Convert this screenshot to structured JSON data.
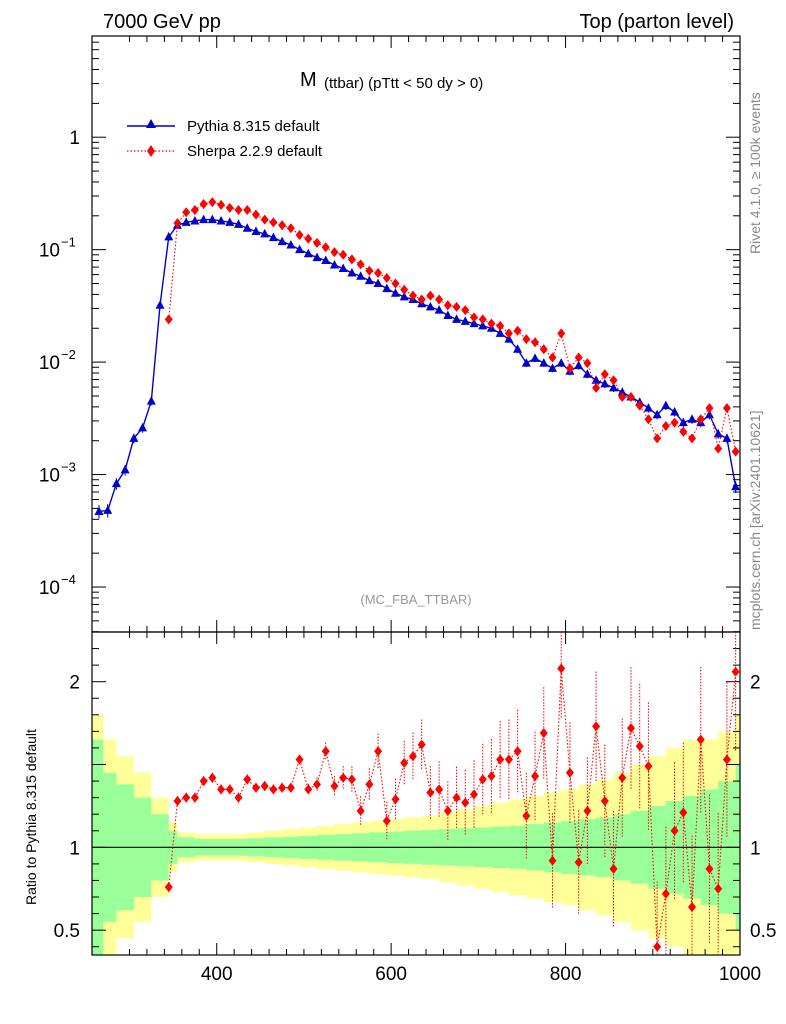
{
  "header": {
    "energy": "7000 GeV pp",
    "process": "Top (parton level)"
  },
  "plot_title": {
    "main": "M",
    "detail": "(ttbar) (pTtt < 50 dy > 0)"
  },
  "legend": [
    {
      "label": "Pythia 8.315 default",
      "color": "#0000cc",
      "marker": "triangle",
      "style": "solid"
    },
    {
      "label": "Sherpa 2.2.9 default",
      "color": "#ff0000",
      "marker": "diamond",
      "style": "dotted"
    }
  ],
  "analysis_tag": "(MC_FBA_TTBAR)",
  "side_text": {
    "rivet": "Rivet 4.1.0, ≥ 100k events",
    "mcplots": "mcplots.cern.ch [arXiv:2401.10621]"
  },
  "ratio_ylabel": "Ratio to Pythia 8.315 default",
  "colors": {
    "pythia": "#0000cc",
    "sherpa": "#ff0000",
    "band_inner": "#99ff99",
    "band_outer": "#ffff99"
  },
  "chart_data": {
    "type": "line",
    "xlim": [
      257,
      1000
    ],
    "x_ticks": [
      400,
      600,
      800,
      1000
    ],
    "main_ylim_log10": [
      -4.4,
      0.9
    ],
    "main_y_ticks": [
      {
        "value": 1,
        "base": "1",
        "exp": ""
      },
      {
        "value": 0.1,
        "base": "10",
        "exp": "−1"
      },
      {
        "value": 0.01,
        "base": "10",
        "exp": "−2"
      },
      {
        "value": 0.001,
        "base": "10",
        "exp": "−3"
      },
      {
        "value": 0.0001,
        "base": "10",
        "exp": "−4"
      }
    ],
    "ratio_ylim": [
      0.35,
      2.3
    ],
    "ratio_y_ticks": [
      0.5,
      1,
      2
    ],
    "series": [
      {
        "name": "Pythia 8.315 default",
        "x": [
          265,
          275,
          285,
          295,
          305,
          315,
          325,
          335,
          345,
          355,
          365,
          375,
          385,
          395,
          405,
          415,
          425,
          435,
          445,
          455,
          465,
          475,
          485,
          495,
          505,
          515,
          525,
          535,
          545,
          555,
          565,
          575,
          585,
          595,
          605,
          615,
          625,
          635,
          645,
          655,
          665,
          675,
          685,
          695,
          705,
          715,
          725,
          735,
          745,
          755,
          765,
          775,
          785,
          795,
          805,
          815,
          825,
          835,
          845,
          855,
          865,
          875,
          885,
          895,
          905,
          915,
          925,
          935,
          945,
          955,
          965,
          975,
          985,
          995
        ],
        "y": [
          0.00047,
          0.00048,
          0.00083,
          0.0011,
          0.0021,
          0.0026,
          0.0045,
          0.032,
          0.13,
          0.165,
          0.175,
          0.18,
          0.185,
          0.185,
          0.18,
          0.175,
          0.168,
          0.155,
          0.145,
          0.138,
          0.128,
          0.118,
          0.11,
          0.1,
          0.092,
          0.085,
          0.08,
          0.073,
          0.068,
          0.062,
          0.058,
          0.053,
          0.05,
          0.045,
          0.041,
          0.038,
          0.036,
          0.033,
          0.031,
          0.029,
          0.026,
          0.024,
          0.023,
          0.022,
          0.021,
          0.02,
          0.018,
          0.016,
          0.013,
          0.0098,
          0.0108,
          0.0098,
          0.0088,
          0.0098,
          0.0083,
          0.0093,
          0.0078,
          0.0069,
          0.0064,
          0.0059,
          0.0054,
          0.0049,
          0.0044,
          0.0039,
          0.0034,
          0.0041,
          0.0036,
          0.0029,
          0.0031,
          0.0029,
          0.0034,
          0.0023,
          0.0021,
          0.00078
        ]
      },
      {
        "name": "Sherpa 2.2.9 default",
        "x": [
          345,
          355,
          365,
          375,
          385,
          395,
          405,
          415,
          425,
          435,
          445,
          455,
          465,
          475,
          485,
          495,
          505,
          515,
          525,
          535,
          545,
          555,
          565,
          575,
          585,
          595,
          605,
          615,
          625,
          635,
          645,
          655,
          665,
          675,
          685,
          695,
          705,
          715,
          725,
          735,
          745,
          755,
          765,
          775,
          785,
          795,
          805,
          815,
          825,
          835,
          845,
          855,
          865,
          875,
          885,
          895,
          905,
          915,
          925,
          935,
          945,
          955,
          965,
          975,
          985,
          995
        ],
        "y": [
          0.024,
          0.172,
          0.215,
          0.225,
          0.255,
          0.265,
          0.25,
          0.235,
          0.225,
          0.225,
          0.205,
          0.185,
          0.175,
          0.165,
          0.155,
          0.135,
          0.125,
          0.115,
          0.105,
          0.095,
          0.09,
          0.082,
          0.074,
          0.065,
          0.062,
          0.056,
          0.05,
          0.044,
          0.039,
          0.036,
          0.039,
          0.036,
          0.032,
          0.031,
          0.029,
          0.025,
          0.024,
          0.022,
          0.021,
          0.018,
          0.019,
          0.016,
          0.015,
          0.013,
          0.011,
          0.018,
          0.0088,
          0.011,
          0.0098,
          0.0059,
          0.0078,
          0.0069,
          0.0049,
          0.0049,
          0.0041,
          0.0031,
          0.0021,
          0.0027,
          0.0029,
          0.0024,
          0.0021,
          0.0031,
          0.0039,
          0.0017,
          0.0039,
          0.0016
        ]
      }
    ],
    "ratio_series": {
      "name": "Sherpa 2.2.9 default / Pythia 8.315 default",
      "x": [
        345,
        355,
        365,
        375,
        385,
        395,
        405,
        415,
        425,
        435,
        445,
        455,
        465,
        475,
        485,
        495,
        505,
        515,
        525,
        535,
        545,
        555,
        565,
        575,
        585,
        595,
        605,
        615,
        625,
        635,
        645,
        655,
        665,
        675,
        685,
        695,
        705,
        715,
        725,
        735,
        745,
        755,
        765,
        775,
        785,
        795,
        805,
        815,
        825,
        835,
        845,
        855,
        865,
        875,
        885,
        895,
        905,
        915,
        925,
        935,
        945,
        955,
        965,
        975,
        985,
        995
      ],
      "y": [
        0.76,
        1.28,
        1.3,
        1.3,
        1.4,
        1.42,
        1.35,
        1.35,
        1.3,
        1.41,
        1.36,
        1.37,
        1.35,
        1.36,
        1.36,
        1.53,
        1.35,
        1.38,
        1.58,
        1.37,
        1.42,
        1.41,
        1.22,
        1.38,
        1.58,
        1.16,
        1.29,
        1.51,
        1.55,
        1.62,
        1.33,
        1.35,
        1.22,
        1.3,
        1.27,
        1.32,
        1.41,
        1.43,
        1.53,
        1.53,
        1.58,
        1.19,
        1.43,
        1.69,
        0.92,
        2.08,
        1.45,
        0.91,
        1.22,
        1.73,
        1.28,
        0.87,
        1.42,
        1.72,
        1.61,
        1.49,
        0.4,
        0.72,
        1.1,
        1.21,
        0.64,
        1.65,
        0.87,
        0.75,
        1.53,
        2.06
      ]
    },
    "band_edges": [
      257,
      270,
      285,
      305,
      325,
      345,
      355,
      375,
      395,
      415,
      435,
      455,
      475,
      495,
      515,
      535,
      555,
      575,
      595,
      615,
      635,
      655,
      675,
      695,
      715,
      735,
      755,
      775,
      795,
      815,
      835,
      855,
      875,
      895,
      915,
      935,
      955,
      975,
      995,
      1000
    ],
    "band_inner_half": [
      0.65,
      0.45,
      0.38,
      0.3,
      0.2,
      0.1,
      0.06,
      0.05,
      0.05,
      0.05,
      0.055,
      0.06,
      0.065,
      0.07,
      0.075,
      0.08,
      0.085,
      0.09,
      0.095,
      0.1,
      0.105,
      0.11,
      0.115,
      0.12,
      0.125,
      0.13,
      0.14,
      0.15,
      0.16,
      0.17,
      0.18,
      0.2,
      0.22,
      0.25,
      0.28,
      0.31,
      0.35,
      0.4,
      0.5
    ],
    "band_outer_half": [
      0.8,
      0.65,
      0.55,
      0.45,
      0.3,
      0.15,
      0.09,
      0.08,
      0.08,
      0.08,
      0.09,
      0.1,
      0.11,
      0.12,
      0.13,
      0.14,
      0.15,
      0.16,
      0.17,
      0.18,
      0.19,
      0.21,
      0.23,
      0.25,
      0.27,
      0.29,
      0.31,
      0.33,
      0.35,
      0.38,
      0.41,
      0.45,
      0.5,
      0.55,
      0.6,
      0.65,
      0.65,
      0.7,
      0.8
    ]
  }
}
